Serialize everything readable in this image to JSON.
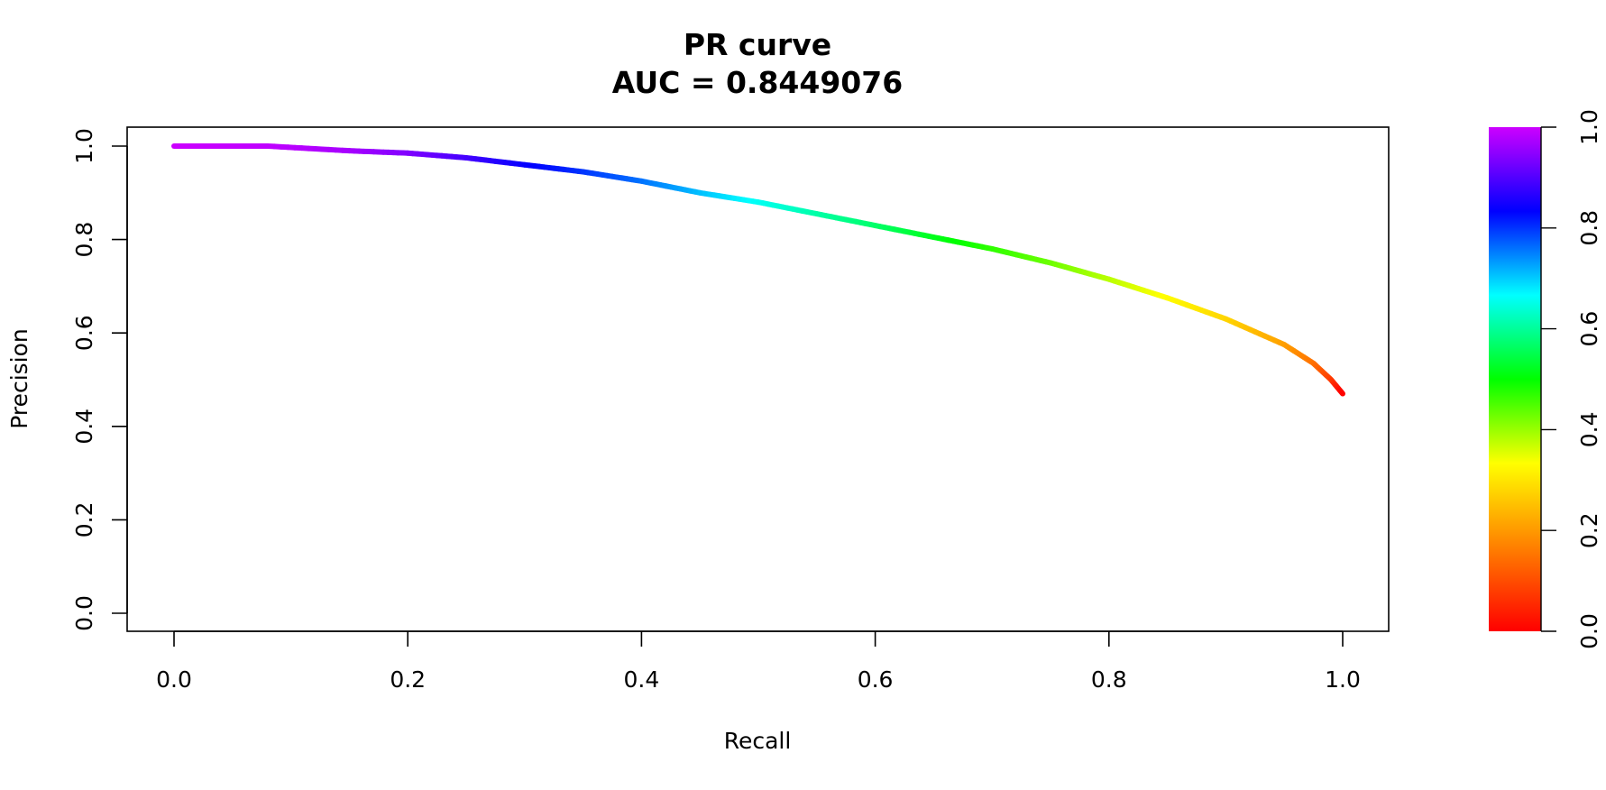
{
  "chart_data": {
    "type": "line",
    "title": "PR curve",
    "subtitle": "AUC = 0.8449076",
    "xlabel": "Recall",
    "ylabel": "Precision",
    "xlim": [
      0.0,
      1.0
    ],
    "ylim": [
      0.0,
      1.0
    ],
    "x_ticks": [
      "0.0",
      "0.2",
      "0.4",
      "0.6",
      "0.8",
      "1.0"
    ],
    "y_ticks": [
      "0.0",
      "0.2",
      "0.4",
      "0.6",
      "0.8",
      "1.0"
    ],
    "grid": false,
    "color_by": "threshold",
    "colorbar": {
      "range": [
        0.0,
        1.0
      ],
      "ticks": [
        "0.0",
        "0.2",
        "0.4",
        "0.6",
        "0.8",
        "1.0"
      ],
      "palette": [
        "#ff0000",
        "#ff8000",
        "#ffff00",
        "#00ff00",
        "#00ffff",
        "#0000ff",
        "#cc00ff"
      ]
    },
    "points": [
      {
        "x": 0.0,
        "y": 1.0,
        "t": 1.0
      },
      {
        "x": 0.08,
        "y": 1.0,
        "t": 0.99
      },
      {
        "x": 0.15,
        "y": 0.99,
        "t": 0.97
      },
      {
        "x": 0.2,
        "y": 0.985,
        "t": 0.94
      },
      {
        "x": 0.25,
        "y": 0.975,
        "t": 0.89
      },
      {
        "x": 0.3,
        "y": 0.96,
        "t": 0.84
      },
      {
        "x": 0.35,
        "y": 0.945,
        "t": 0.8
      },
      {
        "x": 0.4,
        "y": 0.925,
        "t": 0.76
      },
      {
        "x": 0.45,
        "y": 0.9,
        "t": 0.71
      },
      {
        "x": 0.5,
        "y": 0.88,
        "t": 0.66
      },
      {
        "x": 0.55,
        "y": 0.855,
        "t": 0.61
      },
      {
        "x": 0.6,
        "y": 0.83,
        "t": 0.57
      },
      {
        "x": 0.65,
        "y": 0.805,
        "t": 0.52
      },
      {
        "x": 0.7,
        "y": 0.78,
        "t": 0.47
      },
      {
        "x": 0.75,
        "y": 0.75,
        "t": 0.43
      },
      {
        "x": 0.8,
        "y": 0.715,
        "t": 0.38
      },
      {
        "x": 0.85,
        "y": 0.675,
        "t": 0.33
      },
      {
        "x": 0.9,
        "y": 0.63,
        "t": 0.28
      },
      {
        "x": 0.95,
        "y": 0.575,
        "t": 0.21
      },
      {
        "x": 0.975,
        "y": 0.535,
        "t": 0.15
      },
      {
        "x": 0.99,
        "y": 0.5,
        "t": 0.08
      },
      {
        "x": 1.0,
        "y": 0.47,
        "t": 0.0
      }
    ]
  }
}
